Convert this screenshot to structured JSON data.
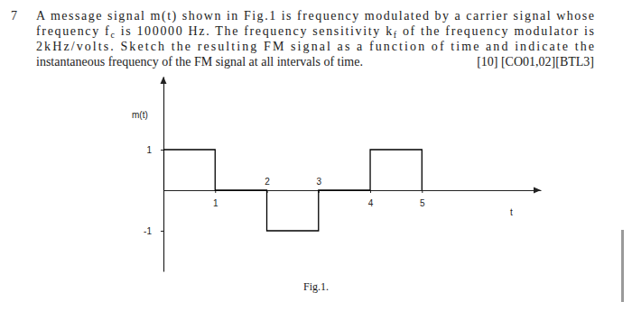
{
  "question": {
    "number": 7,
    "lines": [
      {
        "parts": [
          {
            "text": "A message signal m(t) shown in Fig.1 is frequency modulated by a carrier signal whose"
          }
        ]
      },
      {
        "parts": [
          {
            "text": "frequency f"
          },
          {
            "text": "c",
            "subscript": true
          },
          {
            "text": " is 100000 Hz. The frequency sensitivity k"
          },
          {
            "text": "f",
            "subscript": true
          },
          {
            "text": " of the frequency modulator is"
          }
        ]
      },
      {
        "parts": [
          {
            "text": "2kHz/volts. Sketch the resulting FM signal as a function of time and indicate the"
          }
        ]
      },
      {
        "parts": [
          {
            "text": "instantaneous frequency of the FM signal at all intervals of time."
          }
        ]
      }
    ],
    "marks": "[10] [CO01,02][BTL3]"
  },
  "chart_data": {
    "type": "line",
    "title": "Fig.1.",
    "x_label": "t",
    "y_label": "m(t)",
    "x": [
      0,
      0,
      1,
      1,
      2,
      2,
      3,
      3,
      4,
      4,
      5,
      5
    ],
    "values": [
      0,
      1,
      1,
      0,
      0,
      -1,
      -1,
      0,
      0,
      1,
      1,
      0
    ],
    "xlim": [
      0,
      7.3
    ],
    "ylim": [
      -2,
      2.8
    ],
    "xticks": [
      1,
      2,
      3,
      4,
      5
    ],
    "yticks": [
      -1,
      1
    ],
    "color": "#000000",
    "line_style": "solid"
  }
}
